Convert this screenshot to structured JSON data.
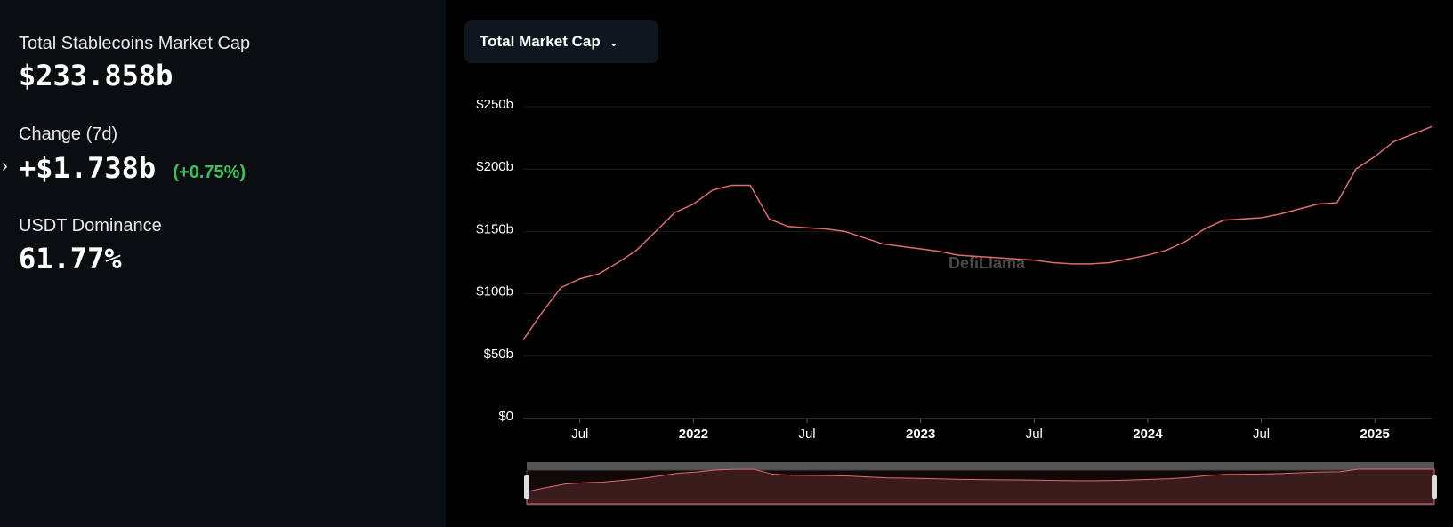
{
  "stats": {
    "market_cap_label": "Total Stablecoins Market Cap",
    "market_cap_value": "$233.858b",
    "change_label": "Change (7d)",
    "change_value": "+$1.738b",
    "change_pct": "(+0.75%)",
    "dominance_label": "USDT Dominance",
    "dominance_value": "61.77%"
  },
  "dropdown": "Total Market Cap",
  "watermark": "DefiLlama",
  "chart_data": {
    "type": "line",
    "x": [
      "2021-04",
      "2021-05",
      "2021-06",
      "2021-07",
      "2021-08",
      "2021-09",
      "2021-10",
      "2021-11",
      "2021-12",
      "2022-01",
      "2022-02",
      "2022-03",
      "2022-04",
      "2022-05",
      "2022-06",
      "2022-07",
      "2022-08",
      "2022-09",
      "2022-10",
      "2022-11",
      "2022-12",
      "2023-01",
      "2023-02",
      "2023-03",
      "2023-04",
      "2023-05",
      "2023-06",
      "2023-07",
      "2023-08",
      "2023-09",
      "2023-10",
      "2023-11",
      "2023-12",
      "2024-01",
      "2024-02",
      "2024-03",
      "2024-04",
      "2024-05",
      "2024-06",
      "2024-07",
      "2024-08",
      "2024-09",
      "2024-10",
      "2024-11",
      "2024-12",
      "2025-01",
      "2025-02",
      "2025-03",
      "2025-04"
    ],
    "series": [
      {
        "name": "Total Market Cap",
        "color": "#e06c6c",
        "values": [
          63,
          85,
          105,
          112,
          116,
          125,
          135,
          150,
          165,
          172,
          183,
          187,
          187,
          160,
          154,
          153,
          152,
          150,
          145,
          140,
          138,
          136,
          134,
          131,
          130,
          129,
          128,
          127,
          125,
          124,
          124,
          125,
          128,
          131,
          135,
          142,
          152,
          159,
          160,
          161,
          164,
          168,
          172,
          173,
          200,
          210,
          222,
          228,
          234
        ]
      }
    ],
    "xlim": [
      "2021-04",
      "2025-04"
    ],
    "xticks": [
      {
        "value": "2021-07",
        "label": "Jul"
      },
      {
        "value": "2022-01",
        "label": "2022"
      },
      {
        "value": "2022-07",
        "label": "Jul"
      },
      {
        "value": "2023-01",
        "label": "2023"
      },
      {
        "value": "2023-07",
        "label": "Jul"
      },
      {
        "value": "2024-01",
        "label": "2024"
      },
      {
        "value": "2024-07",
        "label": "Jul"
      },
      {
        "value": "2025-01",
        "label": "2025"
      }
    ],
    "ylim": [
      0,
      250
    ],
    "yticks": [
      {
        "value": 0,
        "label": "$0"
      },
      {
        "value": 50,
        "label": "$50b"
      },
      {
        "value": 100,
        "label": "$100b"
      },
      {
        "value": 150,
        "label": "$150b"
      },
      {
        "value": 200,
        "label": "$200b"
      },
      {
        "value": 250,
        "label": "$250b"
      }
    ],
    "grid": true
  }
}
